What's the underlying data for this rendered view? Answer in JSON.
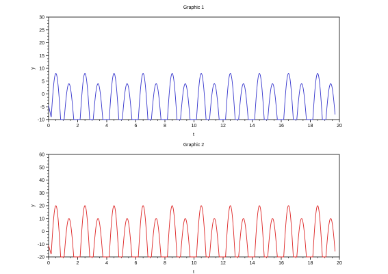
{
  "chart_data": [
    {
      "type": "line",
      "title": "Graphic 1",
      "xlabel": "t",
      "ylabel": "y",
      "xlim": [
        0,
        20
      ],
      "ylim": [
        -10,
        30
      ],
      "xticks": [
        0,
        2,
        4,
        6,
        8,
        10,
        12,
        14,
        16,
        18,
        20
      ],
      "yticks": [
        -10,
        -5,
        0,
        5,
        10,
        15,
        20,
        25,
        30
      ],
      "grid": false,
      "color": "#3333cc",
      "series": [
        {
          "description": "non-negative pulses clipped at y=-10: alternating peaks ~8 (near t=0.5+2k) and ~4 (near t=1.4+2k), period 2 over t in [0,19.7]; starts at about -4 at t=0",
          "start_value": -4.5,
          "peaks": [
            {
              "t": 0.5,
              "y": 8
            },
            {
              "t": 1.4,
              "y": 4
            },
            {
              "t": 2.5,
              "y": 8
            },
            {
              "t": 3.4,
              "y": 4
            },
            {
              "t": 4.5,
              "y": 8
            },
            {
              "t": 5.4,
              "y": 4
            },
            {
              "t": 6.5,
              "y": 8
            },
            {
              "t": 7.4,
              "y": 4
            },
            {
              "t": 8.5,
              "y": 8
            },
            {
              "t": 9.4,
              "y": 4
            },
            {
              "t": 10.5,
              "y": 8
            },
            {
              "t": 11.4,
              "y": 4
            },
            {
              "t": 12.5,
              "y": 8
            },
            {
              "t": 13.4,
              "y": 4
            },
            {
              "t": 14.5,
              "y": 8
            },
            {
              "t": 15.4,
              "y": 4
            },
            {
              "t": 16.5,
              "y": 8
            },
            {
              "t": 17.4,
              "y": 4
            },
            {
              "t": 18.5,
              "y": 8
            },
            {
              "t": 19.4,
              "y": 4
            }
          ]
        }
      ]
    },
    {
      "type": "line",
      "title": "Graphic 2",
      "xlabel": "t",
      "ylabel": "y",
      "xlim": [
        0,
        20
      ],
      "ylim": [
        -20,
        60
      ],
      "xticks": [
        0,
        2,
        4,
        6,
        8,
        10,
        12,
        14,
        16,
        18,
        20
      ],
      "yticks": [
        -20,
        -10,
        0,
        10,
        20,
        30,
        40,
        50,
        60
      ],
      "grid": false,
      "color": "#dd2222",
      "series": [
        {
          "description": "pulses clipped at y=-20: alternating peaks ~20 and ~10, period 2 over t in [0,19.7]; starts at about -12 at t=0",
          "start_value": -11,
          "peaks": [
            {
              "t": 0.5,
              "y": 20
            },
            {
              "t": 1.4,
              "y": 10
            },
            {
              "t": 2.5,
              "y": 20
            },
            {
              "t": 3.4,
              "y": 10
            },
            {
              "t": 4.5,
              "y": 20
            },
            {
              "t": 5.4,
              "y": 10
            },
            {
              "t": 6.5,
              "y": 20
            },
            {
              "t": 7.4,
              "y": 10
            },
            {
              "t": 8.5,
              "y": 20
            },
            {
              "t": 9.4,
              "y": 10
            },
            {
              "t": 10.5,
              "y": 20
            },
            {
              "t": 11.4,
              "y": 10
            },
            {
              "t": 12.5,
              "y": 20
            },
            {
              "t": 13.4,
              "y": 10
            },
            {
              "t": 14.5,
              "y": 20
            },
            {
              "t": 15.4,
              "y": 10
            },
            {
              "t": 16.5,
              "y": 20
            },
            {
              "t": 17.4,
              "y": 10
            },
            {
              "t": 18.5,
              "y": 20
            },
            {
              "t": 19.4,
              "y": 10
            }
          ]
        }
      ]
    }
  ]
}
